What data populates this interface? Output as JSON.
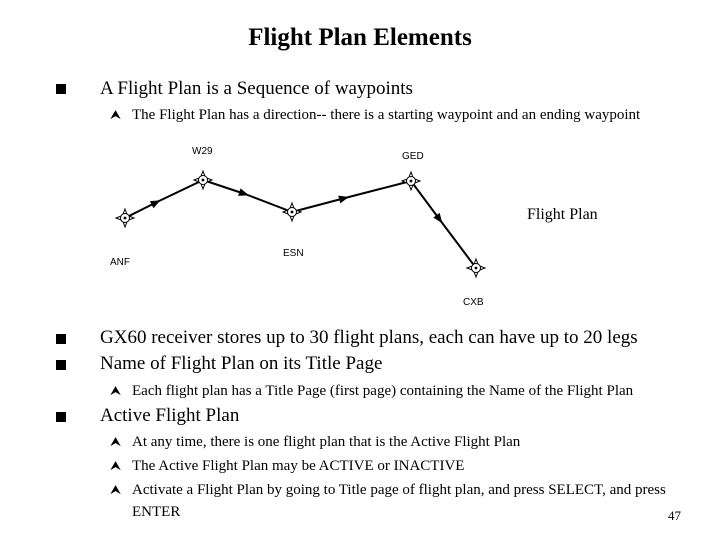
{
  "slide": {
    "title": "Flight Plan Elements",
    "page_number": "47"
  },
  "bullets": [
    {
      "text": "A Flight Plan is a Sequence of waypoints",
      "subs": [
        "The Flight Plan has a direction-- there is a starting waypoint and an ending waypoint"
      ]
    },
    {
      "text": "GX60 receiver stores up to 30 flight plans, each can have up to 20 legs",
      "subs": []
    },
    {
      "text": "Name of Flight Plan on its Title Page",
      "subs": [
        "Each flight plan has a Title Page (first page) containing the Name of the Flight Plan"
      ]
    },
    {
      "text": "Active Flight Plan",
      "subs": [
        "At any time, there is one flight plan that is the Active Flight Plan",
        "The Active Flight Plan may be ACTIVE or INACTIVE",
        "Activate a Flight Plan by going to Title page of flight plan, and press SELECT, and press ENTER"
      ]
    }
  ],
  "figure": {
    "caption": "Flight Plan",
    "waypoints": [
      "ANF",
      "W29",
      "ESN",
      "GED",
      "CXB"
    ]
  },
  "icons": {
    "bullet": "square-bullet-icon",
    "sub_bullet": "arrow-sub-bullet-icon",
    "waypoint": "waypoint-star-icon"
  }
}
